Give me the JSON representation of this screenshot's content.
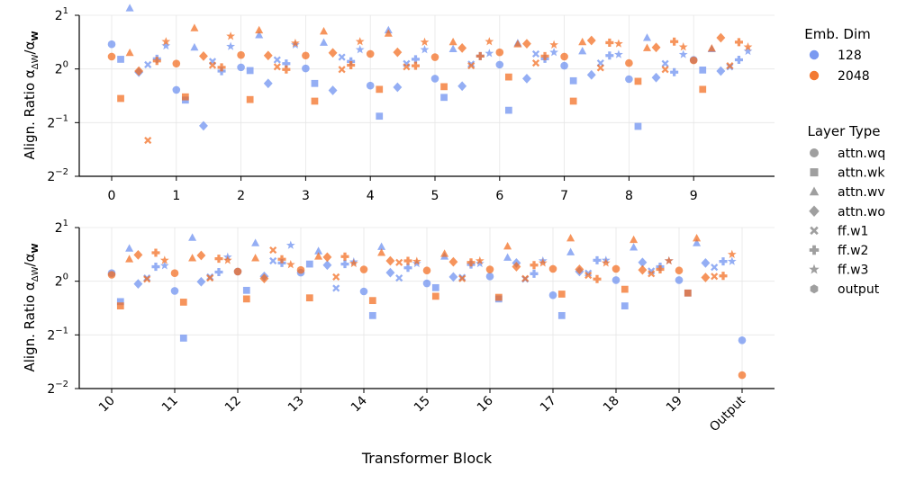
{
  "figure": {
    "xlabel": "Transformer Block",
    "ylabel_main": "Align. Ratio α",
    "ylabel_sub1": "ΔW",
    "ylabel_slash": "/α",
    "ylabel_sub2": "W"
  },
  "legend_emb": {
    "title": "Emb. Dim",
    "items": [
      {
        "label": "128",
        "color": "#6b8ff0"
      },
      {
        "label": "2048",
        "color": "#f26b1d"
      }
    ]
  },
  "legend_layer": {
    "title": "Layer Type",
    "items": [
      {
        "label": "attn.wq",
        "marker": "circle"
      },
      {
        "label": "attn.wk",
        "marker": "square"
      },
      {
        "label": "attn.wv",
        "marker": "triangle"
      },
      {
        "label": "attn.wo",
        "marker": "diamond"
      },
      {
        "label": "ff.w1",
        "marker": "x"
      },
      {
        "label": "ff.w2",
        "marker": "plus"
      },
      {
        "label": "ff.w3",
        "marker": "star"
      },
      {
        "label": "output",
        "marker": "hexagon"
      }
    ]
  },
  "chart_data": [
    {
      "type": "scatter",
      "panel": "top",
      "x_ticks": [
        "0",
        "1",
        "2",
        "3",
        "4",
        "5",
        "6",
        "7",
        "8",
        "9"
      ],
      "y_scale": "log2",
      "ylim": [
        -2,
        1
      ],
      "y_ticks": [
        {
          "label": "2^1",
          "v": 1
        },
        {
          "label": "2^0",
          "v": 0
        },
        {
          "label": "2^-1",
          "v": -1
        },
        {
          "label": "2^-2",
          "v": -2
        }
      ],
      "grid": true,
      "series": [
        {
          "name": "128",
          "layers": [
            [
              0.46,
              0.18,
              1.13,
              -0.06,
              0.08,
              0.19,
              0.43
            ],
            [
              -0.39,
              -0.58,
              0.4,
              -1.06,
              0.14,
              -0.04,
              0.42
            ],
            [
              0.03,
              -0.03,
              0.63,
              -0.27,
              0.17,
              0.1,
              0.45
            ],
            [
              0.01,
              -0.27,
              0.49,
              -0.4,
              0.22,
              0.14,
              0.36
            ],
            [
              -0.31,
              -0.88,
              0.72,
              -0.34,
              0.1,
              0.18,
              0.36
            ],
            [
              -0.18,
              -0.53,
              0.37,
              -0.32,
              0.09,
              0.24,
              0.29
            ],
            [
              0.08,
              -0.77,
              0.48,
              -0.18,
              0.28,
              0.19,
              0.31
            ],
            [
              0.06,
              -0.22,
              0.33,
              -0.11,
              0.11,
              0.25,
              0.27
            ],
            [
              -0.19,
              -1.07,
              0.58,
              -0.16,
              0.1,
              -0.06,
              0.27
            ],
            [
              0.17,
              -0.02,
              0.37,
              -0.04,
              0.04,
              0.17,
              0.33
            ]
          ]
        },
        {
          "name": "2048",
          "layers": [
            [
              0.23,
              -0.55,
              0.3,
              -0.04,
              -1.33,
              0.15,
              0.51
            ],
            [
              0.1,
              -0.52,
              0.76,
              0.24,
              0.07,
              0.03,
              0.61
            ],
            [
              0.26,
              -0.57,
              0.72,
              0.25,
              0.04,
              -0.01,
              0.48
            ],
            [
              0.25,
              -0.6,
              0.7,
              0.3,
              -0.01,
              0.07,
              0.51
            ],
            [
              0.28,
              -0.38,
              0.66,
              0.31,
              0.04,
              0.06,
              0.5
            ],
            [
              0.22,
              -0.33,
              0.5,
              0.39,
              0.06,
              0.24,
              0.51
            ],
            [
              0.31,
              -0.15,
              0.46,
              0.47,
              0.11,
              0.24,
              0.45
            ],
            [
              0.23,
              -0.6,
              0.5,
              0.53,
              0.02,
              0.49,
              0.47
            ],
            [
              0.11,
              -0.23,
              0.39,
              0.4,
              -0.01,
              0.51,
              0.41
            ],
            [
              0.16,
              -0.38,
              0.38,
              0.58,
              0.06,
              0.5,
              0.41
            ]
          ]
        }
      ]
    },
    {
      "type": "scatter",
      "panel": "bottom",
      "x_ticks": [
        "10",
        "11",
        "12",
        "13",
        "14",
        "15",
        "16",
        "17",
        "18",
        "19",
        "Output"
      ],
      "y_scale": "log2",
      "ylim": [
        -2,
        1
      ],
      "y_ticks": [
        {
          "label": "2^1",
          "v": 1
        },
        {
          "label": "2^0",
          "v": 0
        },
        {
          "label": "2^-1",
          "v": -1
        },
        {
          "label": "2^-2",
          "v": -2
        }
      ],
      "grid": true,
      "series": [
        {
          "name": "128",
          "layers": [
            [
              0.15,
              -0.38,
              0.61,
              -0.05,
              0.06,
              0.27,
              0.29
            ],
            [
              -0.18,
              -1.06,
              0.81,
              -0.01,
              0.08,
              0.17,
              0.45
            ],
            [
              0.18,
              -0.17,
              0.71,
              0.09,
              0.38,
              0.34,
              0.67
            ],
            [
              0.16,
              0.32,
              0.56,
              0.3,
              -0.13,
              0.32,
              0.36
            ],
            [
              -0.19,
              -0.64,
              0.64,
              0.16,
              0.06,
              0.25,
              0.33
            ],
            [
              -0.04,
              -0.12,
              0.46,
              0.08,
              0.07,
              0.31,
              0.33
            ],
            [
              0.09,
              -0.33,
              0.44,
              0.34,
              0.04,
              0.14,
              0.38
            ],
            [
              -0.26,
              -0.64,
              0.54,
              0.18,
              0.15,
              0.39,
              0.39
            ],
            [
              0.02,
              -0.46,
              0.63,
              0.35,
              0.19,
              0.27,
              0.38
            ],
            [
              0.02,
              -0.22,
              0.71,
              0.34,
              0.26,
              0.37,
              0.37
            ],
            [
              -1.1
            ]
          ]
        },
        {
          "name": "2048",
          "layers": [
            [
              0.12,
              -0.46,
              0.41,
              0.49,
              0.04,
              0.53,
              0.39
            ],
            [
              0.15,
              -0.39,
              0.43,
              0.48,
              0.06,
              0.42,
              0.39
            ],
            [
              0.18,
              -0.33,
              0.43,
              0.05,
              0.58,
              0.41,
              0.31
            ],
            [
              0.21,
              -0.31,
              0.46,
              0.45,
              0.08,
              0.46,
              0.33
            ],
            [
              0.22,
              -0.36,
              0.53,
              0.38,
              0.35,
              0.38,
              0.37
            ],
            [
              0.2,
              -0.28,
              0.51,
              0.36,
              0.05,
              0.35,
              0.38
            ],
            [
              0.22,
              -0.3,
              0.65,
              0.27,
              0.05,
              0.3,
              0.34
            ],
            [
              0.23,
              -0.24,
              0.8,
              0.22,
              0.11,
              0.04,
              0.34
            ],
            [
              0.23,
              -0.15,
              0.77,
              0.21,
              0.14,
              0.22,
              0.38
            ],
            [
              0.2,
              -0.22,
              0.8,
              0.07,
              0.09,
              0.1,
              0.5
            ],
            [
              -1.75
            ]
          ]
        }
      ]
    }
  ]
}
